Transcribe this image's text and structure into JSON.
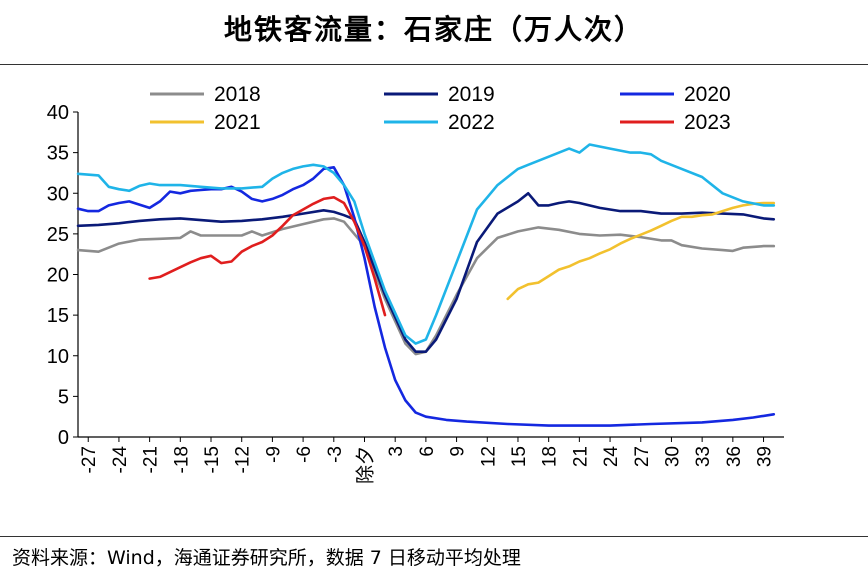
{
  "title": "地铁客流量：石家庄（万人次）",
  "source": "资料来源：Wind，海通证券研究所，数据 7 日移动平均处理",
  "chart_data": {
    "type": "line",
    "title": "地铁客流量：石家庄（万人次）",
    "xlabel": "",
    "ylabel": "",
    "xlim": [
      -28,
      41
    ],
    "ylim": [
      0,
      40
    ],
    "x_ticks": [
      -27,
      -24,
      -21,
      -18,
      -15,
      -12,
      -9,
      -6,
      -3,
      0,
      3,
      6,
      9,
      12,
      15,
      18,
      21,
      24,
      27,
      30,
      33,
      36,
      39
    ],
    "x_tick_labels": [
      "-27",
      "-24",
      "-21",
      "-18",
      "-15",
      "-12",
      "-9",
      "-6",
      "-3",
      "除夕",
      "3",
      "6",
      "9",
      "12",
      "15",
      "18",
      "21",
      "24",
      "27",
      "30",
      "33",
      "36",
      "39"
    ],
    "y_ticks": [
      0,
      5,
      10,
      15,
      20,
      25,
      30,
      35,
      40
    ],
    "grid": false,
    "legend": "top",
    "series": [
      {
        "name": "2018",
        "color": "#8c8c8c",
        "x": [
          -28,
          -26,
          -24,
          -22,
          -20,
          -18,
          -17,
          -16,
          -14,
          -12,
          -11,
          -10,
          -8,
          -6,
          -4,
          -3,
          -2,
          0,
          2,
          4,
          5,
          6,
          7,
          9,
          11,
          13,
          15,
          17,
          19,
          21,
          23,
          25,
          27,
          29,
          30,
          31,
          33,
          35,
          36,
          37,
          39,
          40
        ],
        "y": [
          23.0,
          22.8,
          23.8,
          24.3,
          24.4,
          24.5,
          25.3,
          24.8,
          24.8,
          24.8,
          25.3,
          24.8,
          25.6,
          26.2,
          26.8,
          26.9,
          26.5,
          23.5,
          17.0,
          11.5,
          10.2,
          10.5,
          12.5,
          17.5,
          22.0,
          24.5,
          25.3,
          25.8,
          25.5,
          25.0,
          24.8,
          24.9,
          24.6,
          24.2,
          24.2,
          23.6,
          23.2,
          23.0,
          22.9,
          23.3,
          23.5,
          23.5
        ]
      },
      {
        "name": "2019",
        "color": "#0a1a78",
        "x": [
          -28,
          -26,
          -24,
          -22,
          -20,
          -18,
          -16,
          -14,
          -12,
          -10,
          -8,
          -6,
          -4,
          -3,
          -2,
          -1,
          0,
          2,
          4,
          5,
          6,
          7,
          9,
          11,
          13,
          15,
          16,
          17,
          18,
          19,
          20,
          21,
          23,
          25,
          27,
          29,
          31,
          33,
          35,
          37,
          39,
          40
        ],
        "y": [
          26.0,
          26.1,
          26.3,
          26.6,
          26.8,
          26.9,
          26.7,
          26.5,
          26.6,
          26.8,
          27.1,
          27.5,
          27.9,
          27.7,
          27.3,
          26.8,
          24.0,
          17.5,
          12.0,
          10.5,
          10.5,
          12.0,
          17.0,
          24.0,
          27.5,
          29.0,
          30.0,
          28.5,
          28.5,
          28.8,
          29.0,
          28.8,
          28.2,
          27.8,
          27.8,
          27.5,
          27.5,
          27.6,
          27.5,
          27.4,
          26.9,
          26.8
        ]
      },
      {
        "name": "2020",
        "color": "#1428e0",
        "x": [
          -28,
          -27,
          -26,
          -25,
          -24,
          -23,
          -22,
          -21,
          -20,
          -19,
          -18,
          -17,
          -16,
          -15,
          -14,
          -13,
          -12,
          -11,
          -10,
          -9,
          -8,
          -7,
          -6,
          -5,
          -4,
          -3,
          -2,
          -1,
          0,
          1,
          2,
          3,
          4,
          5,
          6,
          8,
          10,
          14,
          18,
          24,
          28,
          33,
          36,
          38,
          40
        ],
        "y": [
          28.1,
          27.8,
          27.8,
          28.5,
          28.8,
          29.0,
          28.6,
          28.2,
          29.0,
          30.2,
          30.0,
          30.3,
          30.4,
          30.5,
          30.5,
          30.8,
          30.2,
          29.3,
          29.0,
          29.3,
          29.8,
          30.5,
          31.0,
          31.8,
          33.0,
          33.2,
          31.0,
          27.0,
          22.0,
          16.0,
          11.0,
          7.0,
          4.5,
          3.0,
          2.5,
          2.1,
          1.9,
          1.6,
          1.4,
          1.4,
          1.6,
          1.8,
          2.1,
          2.4,
          2.8
        ]
      },
      {
        "name": "2021",
        "color": "#f2c12e",
        "x": [
          14,
          15,
          16,
          17,
          18,
          19,
          20,
          21,
          22,
          23,
          24,
          25,
          26,
          27,
          28,
          29,
          30,
          31,
          32,
          33,
          34,
          35,
          36,
          37,
          38,
          39,
          40
        ],
        "y": [
          17.0,
          18.2,
          18.8,
          19.0,
          19.8,
          20.6,
          21.0,
          21.6,
          22.0,
          22.6,
          23.1,
          23.8,
          24.4,
          24.9,
          25.4,
          26.0,
          26.6,
          27.1,
          27.1,
          27.3,
          27.4,
          27.8,
          28.2,
          28.5,
          28.7,
          28.8,
          28.8
        ]
      },
      {
        "name": "2022",
        "color": "#1fb4e8",
        "x": [
          -28,
          -26,
          -25,
          -24,
          -23,
          -22,
          -21,
          -20,
          -18,
          -16,
          -14,
          -12,
          -10,
          -9,
          -8,
          -7,
          -6,
          -5,
          -4,
          -3,
          -2,
          -1,
          0,
          2,
          4,
          5,
          6,
          7,
          9,
          11,
          12,
          13,
          14,
          15,
          16,
          18,
          20,
          21,
          22,
          24,
          26,
          27,
          28,
          29,
          31,
          33,
          35,
          37,
          39,
          40
        ],
        "y": [
          32.4,
          32.2,
          30.8,
          30.5,
          30.3,
          30.9,
          31.2,
          31.0,
          31.0,
          30.8,
          30.6,
          30.6,
          30.8,
          31.8,
          32.5,
          33.0,
          33.3,
          33.5,
          33.3,
          32.5,
          31.0,
          29.0,
          25.0,
          18.0,
          12.5,
          11.5,
          12.0,
          15.0,
          21.5,
          28.0,
          29.5,
          31.0,
          32.0,
          33.0,
          33.5,
          34.5,
          35.5,
          35.0,
          36.0,
          35.5,
          35.0,
          35.0,
          34.8,
          34.0,
          33.0,
          32.0,
          30.0,
          29.0,
          28.5,
          28.5
        ]
      },
      {
        "name": "2023",
        "color": "#e01e1e",
        "x": [
          -21,
          -20,
          -19,
          -18,
          -17,
          -16,
          -15,
          -14,
          -13,
          -12,
          -11,
          -10,
          -9,
          -8,
          -7,
          -6,
          -5,
          -4,
          -3,
          -2,
          -1,
          0,
          1,
          2
        ],
        "y": [
          19.5,
          19.7,
          20.3,
          20.9,
          21.5,
          22.0,
          22.3,
          21.4,
          21.6,
          22.8,
          23.5,
          24.0,
          24.8,
          26.0,
          27.3,
          28.0,
          28.7,
          29.3,
          29.5,
          28.8,
          26.5,
          23.5,
          19.5,
          15.0
        ]
      }
    ]
  }
}
